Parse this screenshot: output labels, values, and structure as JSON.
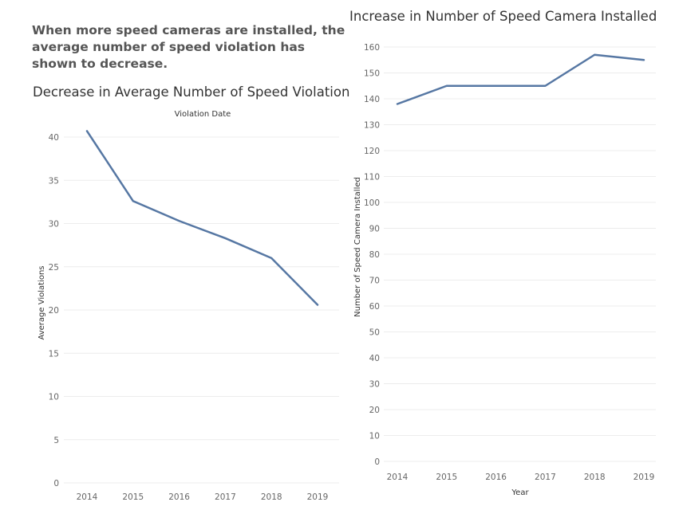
{
  "headline": "When more speed cameras are installed, the average number of speed violation has shown to decrease.",
  "chart_data": [
    {
      "type": "line",
      "title": "Decrease in Average Number of Speed Violation",
      "xlabel": "Violation Date",
      "ylabel": "Average Violations",
      "categories": [
        "2014",
        "2015",
        "2016",
        "2017",
        "2018",
        "2019"
      ],
      "values": [
        40.7,
        32.6,
        30.3,
        28.3,
        26.0,
        20.6
      ],
      "yticks": [
        0,
        5,
        10,
        15,
        20,
        25,
        30,
        35,
        40
      ],
      "ylim": [
        0,
        42
      ],
      "grid": true,
      "xlabel_position": "top",
      "color": "#5677a3"
    },
    {
      "type": "line",
      "title": "Increase in Number of Speed Camera Installed",
      "xlabel": "Year",
      "ylabel": "Number of Speed Camera Installed",
      "categories": [
        "2014",
        "2015",
        "2016",
        "2017",
        "2018",
        "2019"
      ],
      "values": [
        138,
        145,
        145,
        145,
        157,
        155
      ],
      "yticks": [
        0,
        10,
        20,
        30,
        40,
        50,
        60,
        70,
        80,
        90,
        100,
        110,
        120,
        130,
        140,
        150,
        160
      ],
      "ylim": [
        0,
        162
      ],
      "grid": true,
      "xlabel_position": "bottom",
      "color": "#5677a3"
    }
  ]
}
